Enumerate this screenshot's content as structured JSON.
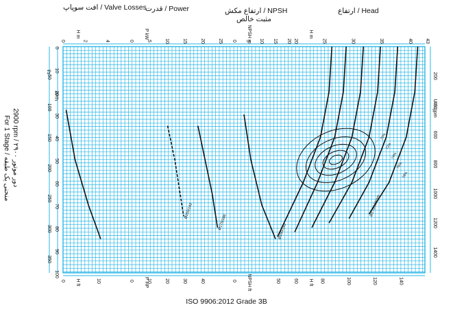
{
  "headers": {
    "valve_losses": "افت سوپاپ / Valve Losses",
    "power": "قدرت / Power",
    "npsh_line1": "ارتفاع مکش / NPSH",
    "npsh_line2": "مثبت خالص",
    "head": "ارتفاع / Head"
  },
  "side": {
    "line1": "2900 rpm / ۲۹۰۰ دور موتور",
    "line2": "For 1 Stage / منحنی یک طبقه"
  },
  "footer": "ISO 9906:2012 Grade 3B",
  "colors": {
    "grid": "#29b6e6",
    "grid_bg": "#ffffff",
    "curves": "#111111"
  },
  "chart_data": {
    "type": "line",
    "title": "",
    "flow_scales": {
      "m3_per_h": {
        "label": "m³/h",
        "ticks": [
          0,
          10,
          20,
          30,
          40,
          50,
          60,
          70,
          80,
          90,
          100
        ]
      },
      "l_per_s": {
        "label": "l/s",
        "ticks": [
          0,
          10,
          20,
          30,
          40,
          50,
          60,
          70,
          80,
          90,
          100
        ]
      },
      "us_gpm": {
        "label": "U.S.gpm",
        "ticks": [
          200,
          400,
          600,
          800,
          1000,
          1200,
          1400
        ]
      },
      "lpm_left": {
        "ticks": [
          50,
          100,
          150,
          200,
          250,
          300,
          350
        ]
      }
    },
    "panels": {
      "valve": {
        "top_unit": "H m",
        "top_ticks": [
          0,
          2,
          4
        ],
        "bottom_unit": "H ft",
        "bottom_ticks": [
          0,
          10
        ]
      },
      "power": {
        "top_unit": "P kW",
        "top_ticks": [
          0,
          5,
          10,
          15,
          20,
          25
        ],
        "bottom_unit": "P HP",
        "bottom_ticks": [
          0,
          10,
          20,
          30,
          40
        ]
      },
      "npsh": {
        "top_unit": "NPSH m",
        "top_ticks": [
          0,
          5,
          10,
          15,
          20
        ],
        "bottom_unit": "NPSH ft",
        "bottom_ticks": [
          0,
          50
        ]
      },
      "head": {
        "top_unit": "H m",
        "top_ticks": [
          20,
          25,
          30,
          35,
          40,
          43
        ],
        "bottom_unit": "H ft",
        "bottom_ticks": [
          60,
          80,
          100,
          120,
          140
        ]
      }
    },
    "series": [
      {
        "panel": "head",
        "name": "Ø175/186mm",
        "x": [
          0,
          20,
          40,
          60,
          74
        ],
        "y": [
          41.5,
          41,
          39.5,
          36.5,
          33
        ]
      },
      {
        "panel": "head",
        "x": [
          0,
          20,
          40,
          60,
          76
        ],
        "y": [
          38,
          37.5,
          36,
          33,
          29.5
        ]
      },
      {
        "panel": "head",
        "x": [
          0,
          20,
          40,
          60,
          78
        ],
        "y": [
          35,
          34.5,
          33,
          30,
          26
        ]
      },
      {
        "panel": "head",
        "x": [
          0,
          20,
          40,
          60,
          80
        ],
        "y": [
          32,
          31.5,
          30,
          27,
          23
        ]
      },
      {
        "panel": "head",
        "x": [
          0,
          20,
          40,
          60,
          82
        ],
        "y": [
          29,
          28.5,
          27,
          24,
          20
        ]
      },
      {
        "panel": "head",
        "name": "Ø150/142",
        "x": [
          0,
          20,
          40,
          60,
          84
        ],
        "y": [
          26.5,
          26,
          24.5,
          21.5,
          17
        ]
      },
      {
        "panel": "power",
        "name": "Ø175/186",
        "x": [
          35,
          50,
          65,
          80
        ],
        "y": [
          19,
          21,
          23,
          24.5
        ]
      },
      {
        "panel": "power",
        "name": "Ø150/142",
        "x": [
          35,
          50,
          65,
          75
        ],
        "y": [
          10.5,
          12.5,
          14,
          15
        ]
      },
      {
        "panel": "npsh",
        "x": [
          30,
          50,
          70,
          85
        ],
        "y": [
          4,
          6.5,
          10.5,
          15.5
        ]
      },
      {
        "panel": "valve",
        "x": [
          28,
          50,
          70,
          85
        ],
        "y": [
          0.4,
          1.2,
          2.4,
          3.5
        ]
      }
    ],
    "annotations": [
      "Ø175/186mm",
      "Ø175/186",
      "Ø170/162",
      "Ø165/157",
      "Ø160/152",
      "Ø150/142"
    ],
    "efficiency_labels": [
      "70",
      "72",
      "74",
      "76",
      "78"
    ],
    "grid": true
  }
}
